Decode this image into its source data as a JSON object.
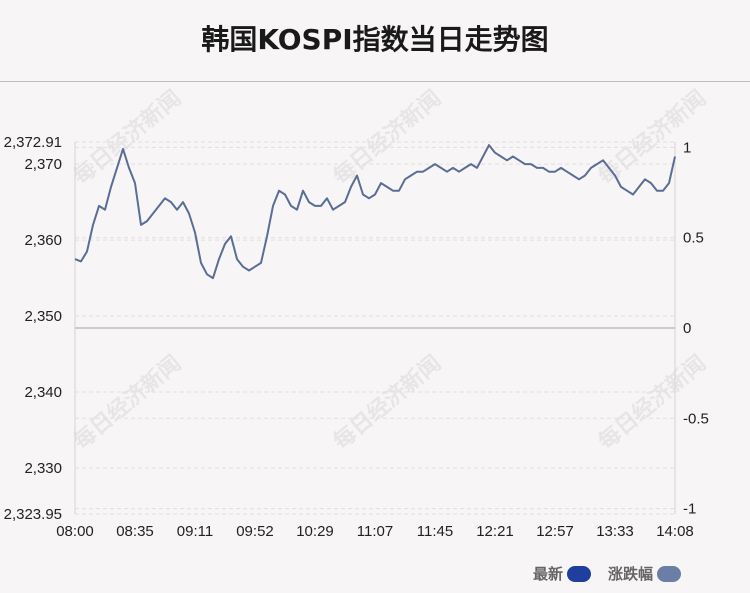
{
  "title": "韩国KOSPI指数当日走势图",
  "watermark": "每日经济新闻",
  "legend": [
    {
      "label": "最新",
      "color": "#1f3f9e"
    },
    {
      "label": "涨跌幅",
      "color": "#6a7ea6"
    }
  ],
  "chart_data": {
    "type": "line",
    "line_color": "#5a6d95",
    "x_ticks": [
      "08:00",
      "08:35",
      "09:11",
      "09:52",
      "10:29",
      "11:07",
      "11:45",
      "12:21",
      "12:57",
      "13:33",
      "14:08"
    ],
    "y_left_ticks": [
      "2,323.95",
      "2,330",
      "2,340",
      "2,350",
      "2,360",
      "2,370",
      "2,372.91"
    ],
    "y_left_values": [
      2323.95,
      2330,
      2340,
      2350,
      2360,
      2370,
      2372.91
    ],
    "y_left_range": [
      2323.95,
      2372.91
    ],
    "y_right_ticks": [
      "-1",
      "-0.5",
      "0",
      "0.5",
      "1"
    ],
    "y_right_values": [
      -1,
      -0.5,
      0,
      0.5,
      1
    ],
    "y_right_range": [
      -1.03,
      1.03
    ],
    "baseline": 2348.43,
    "series": [
      {
        "x_index": [
          0,
          1,
          2,
          3,
          4,
          5,
          6,
          7,
          8,
          9,
          10,
          11,
          12,
          13,
          14,
          15,
          16,
          17,
          18,
          19,
          20,
          21,
          22,
          23,
          24,
          25,
          26,
          27,
          28,
          29,
          30,
          31,
          32,
          33,
          34,
          35,
          36,
          37,
          38,
          39,
          40,
          41,
          42,
          43,
          44,
          45,
          46,
          47,
          48,
          49,
          50,
          51,
          52,
          53,
          54,
          55,
          56,
          57,
          58,
          59,
          60,
          61,
          62,
          63,
          64,
          65,
          66,
          67,
          68,
          69,
          70,
          71,
          72,
          73,
          74,
          75,
          76,
          77,
          78,
          79,
          80,
          81,
          82,
          83,
          84,
          85,
          86,
          87,
          88,
          89,
          90,
          91,
          92,
          93,
          94,
          95,
          96,
          97,
          98,
          99,
          100
        ],
        "values": [
          2357.5,
          2357.2,
          2358.5,
          2362.0,
          2364.5,
          2364.0,
          2367.0,
          2369.5,
          2372.0,
          2369.5,
          2367.5,
          2362.0,
          2362.5,
          2363.5,
          2364.5,
          2365.5,
          2365.0,
          2364.0,
          2365.0,
          2363.5,
          2361.0,
          2357.0,
          2355.5,
          2355.0,
          2357.5,
          2359.5,
          2360.5,
          2357.5,
          2356.5,
          2356.0,
          2356.5,
          2357.0,
          2360.5,
          2364.5,
          2366.5,
          2366.0,
          2364.5,
          2364.0,
          2366.5,
          2365.0,
          2364.5,
          2364.5,
          2365.5,
          2364.0,
          2364.5,
          2365.0,
          2367.0,
          2368.5,
          2366.0,
          2365.5,
          2366.0,
          2367.5,
          2367.0,
          2366.5,
          2366.5,
          2368.0,
          2368.5,
          2369.0,
          2369.0,
          2369.5,
          2370.0,
          2369.5,
          2369.0,
          2369.5,
          2369.0,
          2369.5,
          2370.0,
          2369.5,
          2371.0,
          2372.5,
          2371.5,
          2371.0,
          2370.5,
          2371.0,
          2370.5,
          2370.0,
          2370.0,
          2369.5,
          2369.5,
          2369.0,
          2369.0,
          2369.5,
          2369.0,
          2368.5,
          2368.0,
          2368.5,
          2369.5,
          2370.0,
          2370.5,
          2369.5,
          2368.5,
          2367.0,
          2366.5,
          2366.0,
          2367.0,
          2368.0,
          2367.5,
          2366.5,
          2366.5,
          2367.5,
          2371.0
        ],
        "x_ticks_at_index": [
          0,
          10,
          20,
          30,
          40,
          50,
          60,
          70,
          80,
          90,
          100
        ]
      }
    ]
  }
}
